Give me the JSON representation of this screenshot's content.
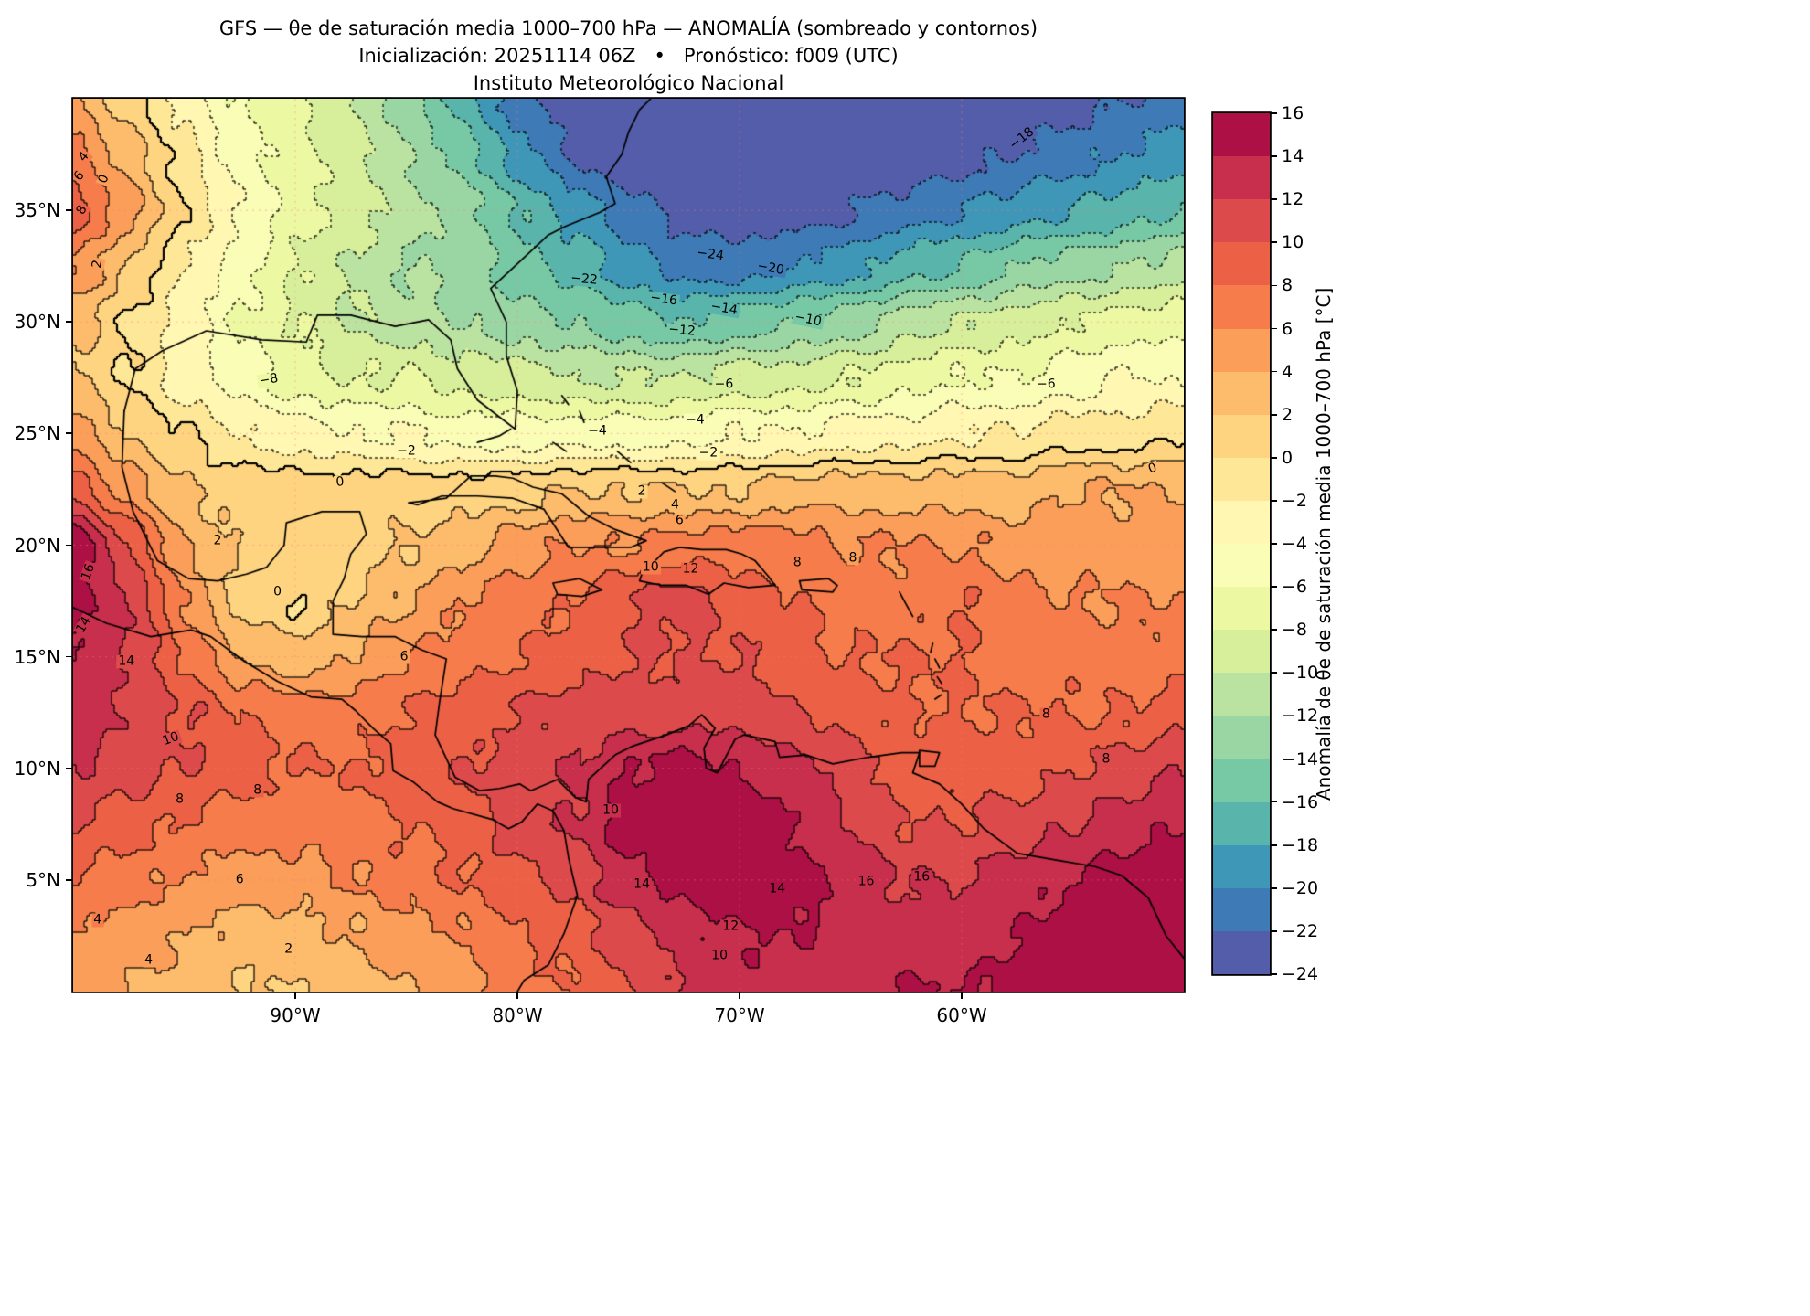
{
  "title": {
    "line1": "GFS — θe de saturación media 1000–700 hPa — ANOMALÍA (sombreado y contornos)",
    "line2": "Inicialización: 20251114 06Z   •   Pronóstico: f009 (UTC)",
    "line3": "Instituto Meteorológico Nacional"
  },
  "axes": {
    "lat_ticks": [
      {
        "label": "35°N",
        "value": 35
      },
      {
        "label": "30°N",
        "value": 30
      },
      {
        "label": "25°N",
        "value": 25
      },
      {
        "label": "20°N",
        "value": 20
      },
      {
        "label": "15°N",
        "value": 15
      },
      {
        "label": "10°N",
        "value": 10
      },
      {
        "label": "5°N",
        "value": 5
      }
    ],
    "lon_ticks": [
      {
        "label": "90°W",
        "value": -90
      },
      {
        "label": "80°W",
        "value": -80
      },
      {
        "label": "70°W",
        "value": -70
      },
      {
        "label": "60°W",
        "value": -60
      }
    ]
  },
  "colorbar": {
    "label": "Anomalía de θe de saturación media 1000–700 hPa [°C]",
    "vmin": -24,
    "vmax": 16,
    "step": 2,
    "tick_labels": [
      "16",
      "14",
      "12",
      "10",
      "8",
      "6",
      "4",
      "2",
      "0",
      "−2",
      "−4",
      "−6",
      "−8",
      "−10",
      "−12",
      "−14",
      "−16",
      "−18",
      "−20",
      "−22",
      "−24"
    ],
    "colors_low_to_high": [
      "#535DA9",
      "#3D7AB6",
      "#3F97B7",
      "#59B4AB",
      "#77C9A5",
      "#9AD6A4",
      "#BAE3A1",
      "#D7EF9B",
      "#ECF8A2",
      "#F9FDB5",
      "#FFF7B2",
      "#FEE898",
      "#FED481",
      "#FDBB6C",
      "#FB9E5A",
      "#F67D4B",
      "#EC6146",
      "#DD4A4C",
      "#C72F4C",
      "#AC1045"
    ]
  },
  "chart_data": {
    "type": "heatmap",
    "title": "GFS — θe de saturación media 1000–700 hPa — ANOMALÍA (sombreado y contornos)",
    "field_label": "Anomalía de θe de saturación media 1000–700 hPa [°C]",
    "colormap": "Spectral_r",
    "legend_position": "right-colorbar",
    "grid_on": true,
    "extent": {
      "lon_min": -100,
      "lon_max": -50,
      "lat_min": 0,
      "lat_max": 40
    },
    "contour_interval": 2,
    "contour_levels_min": -24,
    "contour_levels_max": 16,
    "negative_contours_dotted": true,
    "grid_lons": [
      -100,
      -97.5,
      -95,
      -92.5,
      -90,
      -87.5,
      -85,
      -82.5,
      -80,
      -77.5,
      -75,
      -72.5,
      -70,
      -67.5,
      -65,
      -62.5,
      -60,
      -57.5,
      -55,
      -52.5,
      -50
    ],
    "grid_lats": [
      40,
      37.5,
      35,
      32.5,
      30,
      27.5,
      25,
      22.5,
      20,
      17.5,
      15,
      12.5,
      10,
      7.5,
      5,
      2.5,
      0
    ],
    "values_north_to_south": [
      [
        4,
        1,
        -3,
        -6,
        -8,
        -10,
        -13,
        -17,
        -21,
        -24,
        -25,
        -25,
        -25,
        -25,
        -25,
        -25,
        -24,
        -24,
        -23,
        -22,
        -21
      ],
      [
        7,
        3,
        -1,
        -5,
        -7,
        -9,
        -12,
        -15,
        -19,
        -22,
        -24,
        -25,
        -25,
        -25,
        -24,
        -24,
        -23,
        -22,
        -21,
        -20,
        -19
      ],
      [
        9,
        5,
        0,
        -4,
        -7,
        -9,
        -11,
        -13,
        -16,
        -19,
        -21,
        -23,
        -23,
        -23,
        -22,
        -21,
        -20,
        -19,
        -18,
        -17,
        -16
      ],
      [
        6,
        2,
        -2,
        -5,
        -8,
        -10,
        -12,
        -13,
        -15,
        -17,
        -19,
        -21,
        -21,
        -20,
        -19,
        -17,
        -16,
        -14,
        -13,
        -12,
        -11
      ],
      [
        3,
        0,
        -3,
        -6,
        -8,
        -10,
        -11,
        -12,
        -13,
        -14,
        -15,
        -16,
        -15,
        -14,
        -13,
        -11,
        -10,
        -9,
        -8,
        -7,
        -7
      ],
      [
        2,
        0,
        -3,
        -5,
        -7,
        -8,
        -8,
        -9,
        -9,
        -10,
        -10,
        -10,
        -9,
        -9,
        -8,
        -7,
        -6,
        -6,
        -5,
        -4,
        -4
      ],
      [
        5,
        2,
        0,
        -2,
        -3,
        -4,
        -4,
        -5,
        -5,
        -5,
        -5,
        -5,
        -4,
        -4,
        -3,
        -3,
        -2,
        -2,
        -1,
        -1,
        0
      ],
      [
        9,
        5,
        2,
        1,
        1,
        1,
        1,
        1,
        1,
        2,
        2,
        2,
        2,
        3,
        3,
        3,
        3,
        3,
        4,
        4,
        4
      ],
      [
        16,
        10,
        4,
        2,
        1,
        1,
        2,
        3,
        5,
        6,
        6,
        7,
        7,
        7,
        6,
        6,
        6,
        5,
        5,
        5,
        5
      ],
      [
        15,
        12,
        6,
        1,
        0,
        2,
        4,
        6,
        7,
        8,
        10,
        11,
        9,
        8,
        7,
        7,
        8,
        7,
        6,
        6,
        6
      ],
      [
        14,
        12,
        8,
        4,
        3,
        4,
        6,
        7,
        8,
        9,
        10,
        10,
        10,
        9,
        8,
        8,
        8,
        7,
        7,
        7,
        7
      ],
      [
        13,
        12,
        10,
        8,
        7,
        7,
        8,
        9,
        10,
        11,
        11,
        11,
        11,
        10,
        9,
        8,
        8,
        8,
        8,
        8,
        9
      ],
      [
        12,
        11,
        10,
        9,
        8,
        8,
        9,
        10,
        11,
        12,
        14,
        15,
        14,
        13,
        11,
        9,
        9,
        9,
        10,
        11,
        12
      ],
      [
        10,
        9,
        8,
        7,
        7,
        7,
        8,
        9,
        11,
        12,
        15,
        16,
        15,
        14,
        12,
        10,
        10,
        11,
        12,
        13,
        14
      ],
      [
        8,
        7,
        6,
        5,
        5,
        6,
        7,
        8,
        9,
        11,
        13,
        15,
        16,
        15,
        13,
        12,
        12,
        13,
        14,
        15,
        16
      ],
      [
        6,
        5,
        4,
        3,
        3,
        4,
        5,
        6,
        8,
        9,
        11,
        13,
        14,
        14,
        13,
        13,
        13,
        14,
        15,
        16,
        16
      ],
      [
        5,
        4,
        3,
        2,
        2,
        3,
        4,
        5,
        7,
        8,
        10,
        12,
        13,
        13,
        13,
        14,
        14,
        15,
        16,
        16,
        16
      ]
    ],
    "contour_labels": [
      {
        "v": "−18",
        "lon": -57.3,
        "lat": 38.2,
        "rot": -38
      },
      {
        "v": "−24",
        "lon": -71.3,
        "lat": 33.0,
        "rot": 8
      },
      {
        "v": "−20",
        "lon": -68.6,
        "lat": 32.4,
        "rot": 10
      },
      {
        "v": "−22",
        "lon": -77.0,
        "lat": 31.9,
        "rot": 5
      },
      {
        "v": "−16",
        "lon": -73.4,
        "lat": 31.0,
        "rot": 8
      },
      {
        "v": "−14",
        "lon": -70.7,
        "lat": 30.6,
        "rot": 10
      },
      {
        "v": "−12",
        "lon": -72.6,
        "lat": 29.6,
        "rot": 5
      },
      {
        "v": "−10",
        "lon": -66.9,
        "lat": 30.1,
        "rot": 12
      },
      {
        "v": "−8",
        "lon": -91.2,
        "lat": 27.4,
        "rot": -10
      },
      {
        "v": "−6",
        "lon": -70.7,
        "lat": 27.2,
        "rot": 0
      },
      {
        "v": "−6",
        "lon": -56.2,
        "lat": 27.2,
        "rot": 0
      },
      {
        "v": "−4",
        "lon": -76.4,
        "lat": 25.1,
        "rot": 0
      },
      {
        "v": "−2",
        "lon": -71.4,
        "lat": 24.1,
        "rot": 0
      },
      {
        "v": "0",
        "lon": -51.4,
        "lat": 23.4,
        "rot": -20
      },
      {
        "v": "0",
        "lon": -88.0,
        "lat": 22.8,
        "rot": -5
      },
      {
        "v": "2",
        "lon": -74.4,
        "lat": 22.4,
        "rot": 0
      },
      {
        "v": "4",
        "lon": -72.9,
        "lat": 21.8,
        "rot": 0
      },
      {
        "v": "6",
        "lon": -72.7,
        "lat": 21.1,
        "rot": 0
      },
      {
        "v": "2",
        "lon": -93.5,
        "lat": 20.2,
        "rot": 0
      },
      {
        "v": "0",
        "lon": -90.8,
        "lat": 17.9,
        "rot": 0
      },
      {
        "v": "16",
        "lon": -99.3,
        "lat": 18.8,
        "rot": -70
      },
      {
        "v": "14",
        "lon": -99.5,
        "lat": 16.4,
        "rot": -60
      },
      {
        "v": "12",
        "lon": -72.2,
        "lat": 18.9,
        "rot": 0
      },
      {
        "v": "10",
        "lon": -74.0,
        "lat": 19.0,
        "rot": 0
      },
      {
        "v": "8",
        "lon": -67.4,
        "lat": 19.2,
        "rot": 0
      },
      {
        "v": "8",
        "lon": -64.9,
        "lat": 19.4,
        "rot": 0
      },
      {
        "v": "6",
        "lon": -85.1,
        "lat": 15.0,
        "rot": 0
      },
      {
        "v": "14",
        "lon": -97.6,
        "lat": 14.8,
        "rot": 0
      },
      {
        "v": "10",
        "lon": -95.6,
        "lat": 11.3,
        "rot": -20
      },
      {
        "v": "8",
        "lon": -95.2,
        "lat": 8.6,
        "rot": 0
      },
      {
        "v": "8",
        "lon": -91.7,
        "lat": 9.0,
        "rot": 0
      },
      {
        "v": "6",
        "lon": -92.5,
        "lat": 5.0,
        "rot": 0
      },
      {
        "v": "4",
        "lon": -98.9,
        "lat": 3.2,
        "rot": 0
      },
      {
        "v": "2",
        "lon": -90.3,
        "lat": 1.9,
        "rot": 0
      },
      {
        "v": "4",
        "lon": -96.6,
        "lat": 1.4,
        "rot": 0
      },
      {
        "v": "10",
        "lon": -75.8,
        "lat": 8.1,
        "rot": 0
      },
      {
        "v": "16",
        "lon": -64.3,
        "lat": 4.9,
        "rot": 0
      },
      {
        "v": "16",
        "lon": -61.8,
        "lat": 5.1,
        "rot": 0
      },
      {
        "v": "14",
        "lon": -74.4,
        "lat": 4.8,
        "rot": 0
      },
      {
        "v": "14",
        "lon": -68.3,
        "lat": 4.6,
        "rot": 0
      },
      {
        "v": "12",
        "lon": -70.4,
        "lat": 2.9,
        "rot": 0
      },
      {
        "v": "10",
        "lon": -70.9,
        "lat": 1.6,
        "rot": 0
      },
      {
        "v": "8",
        "lon": -56.2,
        "lat": 12.4,
        "rot": 0
      },
      {
        "v": "8",
        "lon": -53.5,
        "lat": 10.4,
        "rot": 0
      },
      {
        "v": "4",
        "lon": -99.5,
        "lat": 37.4,
        "rot": -50
      },
      {
        "v": "6",
        "lon": -99.7,
        "lat": 36.5,
        "rot": -50
      },
      {
        "v": "8",
        "lon": -99.6,
        "lat": 35.0,
        "rot": -60
      },
      {
        "v": "0",
        "lon": -98.6,
        "lat": 36.4,
        "rot": -70
      },
      {
        "v": "2",
        "lon": -98.9,
        "lat": 32.6,
        "rot": -80
      },
      {
        "v": "−4",
        "lon": -72.0,
        "lat": 25.6,
        "rot": 0
      },
      {
        "v": "−2",
        "lon": -85.0,
        "lat": 24.2,
        "rot": 0
      }
    ]
  }
}
